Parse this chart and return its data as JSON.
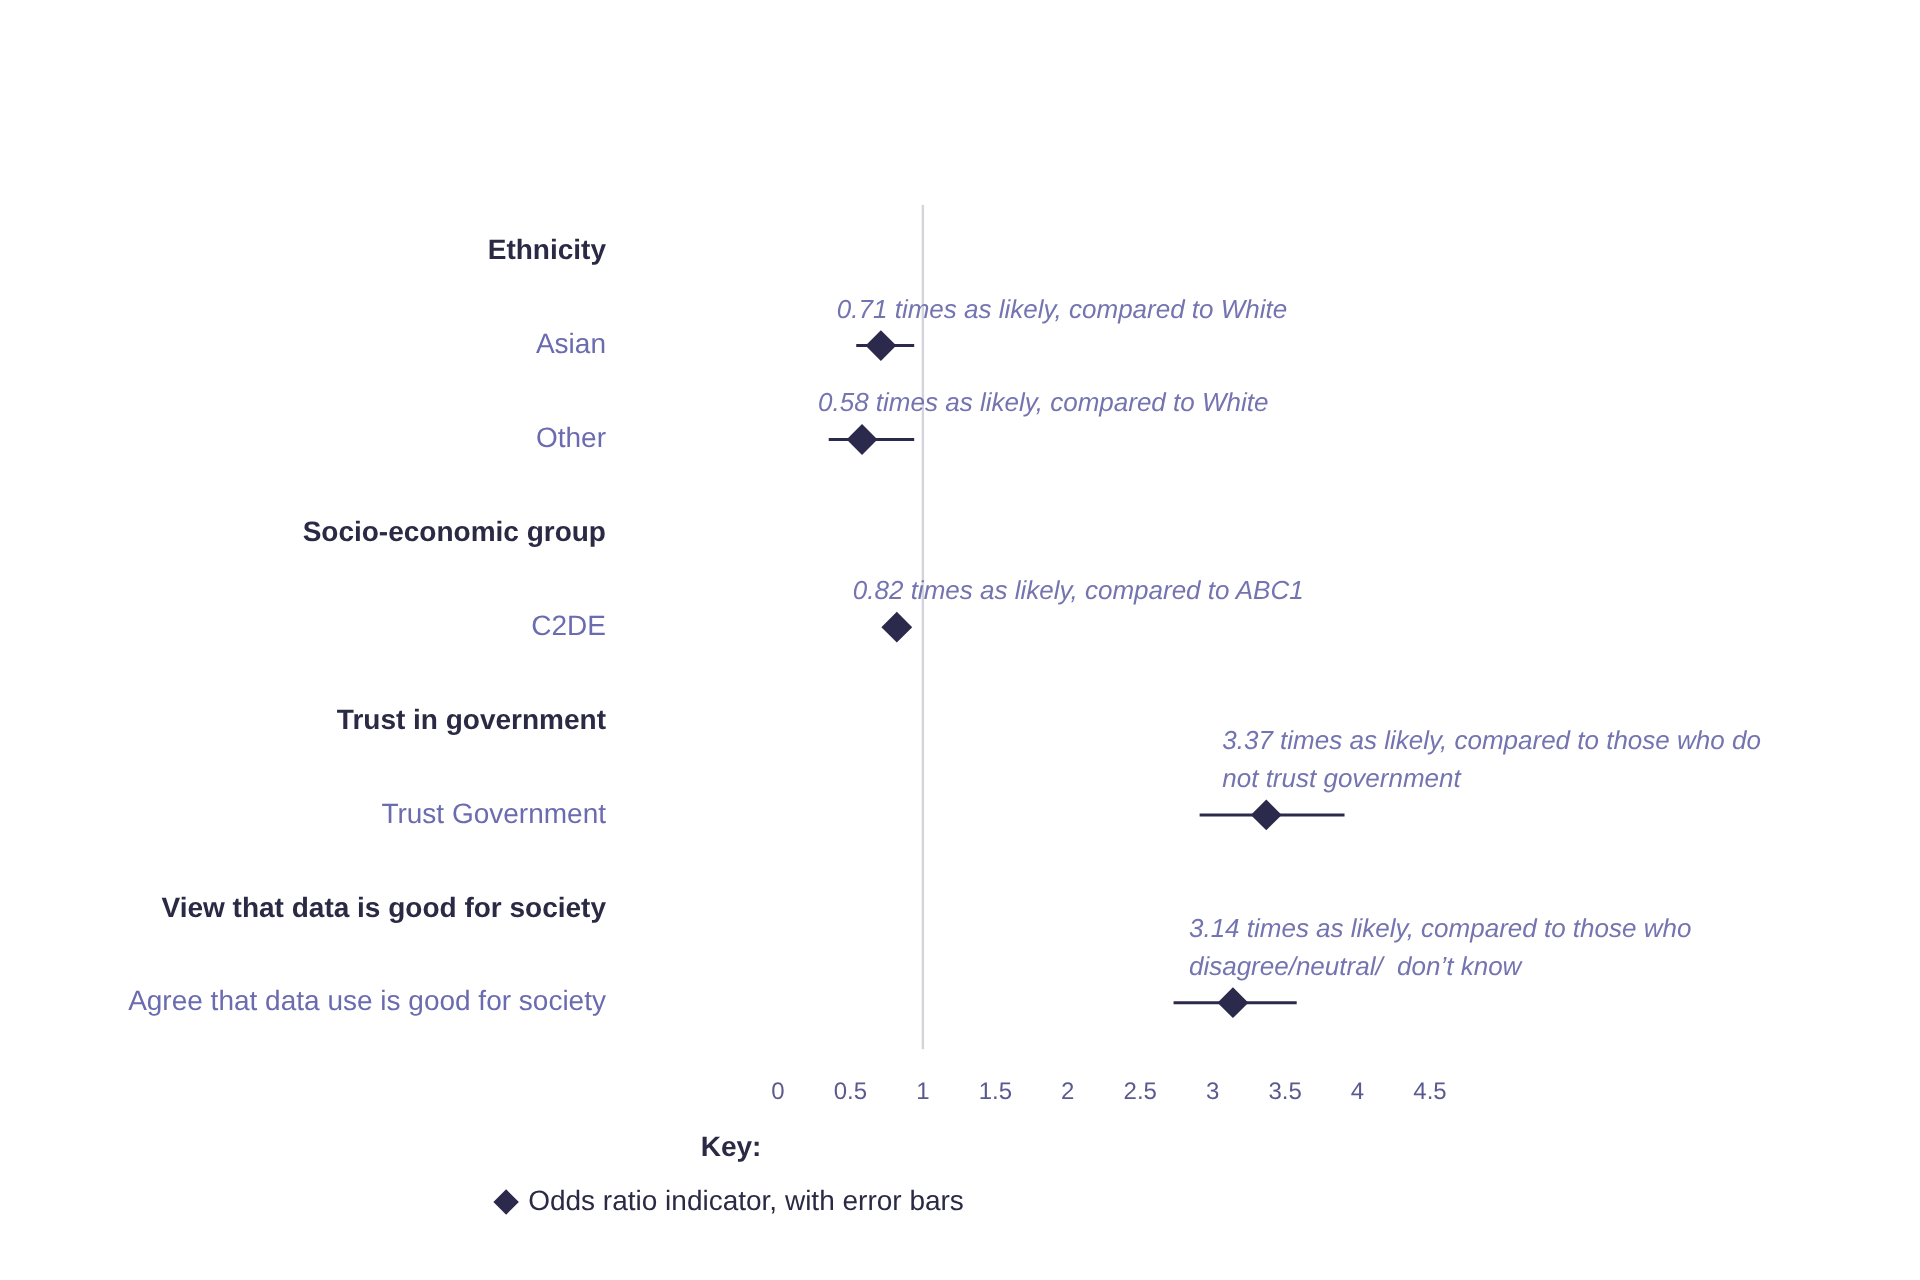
{
  "chart_data": {
    "type": "scatter",
    "orientation": "horizontal",
    "categories": [
      "Ethnicity",
      "Asian",
      "Other",
      "Socio-economic group",
      "C2DE",
      "Trust in government",
      "Trust Government",
      "View that data is good for society",
      "Agree that data use is good for society"
    ],
    "series": [
      {
        "name": "Odds ratio indicator, with error bars",
        "color": "#2b2a4c",
        "values": [
          null,
          0.71,
          0.58,
          null,
          0.82,
          null,
          3.37,
          null,
          3.14
        ],
        "errors": [
          null,
          [
            0.54,
            0.94
          ],
          [
            0.35,
            0.94
          ],
          null,
          [
            0.75,
            0.9
          ],
          null,
          [
            2.91,
            3.91
          ],
          null,
          [
            2.73,
            3.58
          ]
        ]
      }
    ],
    "xlim": [
      0,
      4.5
    ],
    "xticks": [
      0,
      0.5,
      1,
      1.5,
      2,
      2.5,
      3,
      3.5,
      4,
      4.5
    ],
    "ref_lines": [
      {
        "axis": "x",
        "value": 1,
        "color": "#d4d4dc"
      }
    ],
    "annotations": [
      {
        "text": "0.71 times as likely, compared to White",
        "x": 0.71,
        "y": "Asian"
      },
      {
        "text": "0.58 times as likely, compared to White",
        "x": 0.58,
        "y": "Other"
      },
      {
        "text": "0.82 times as likely, compared to ABC1",
        "x": 0.82,
        "y": "C2DE"
      },
      {
        "text": "3.37 times as likely, compared to those who do not trust government",
        "x": 3.37,
        "y": "Trust Government"
      },
      {
        "text": "3.14 times as likely, compared to those who disagree/neutral/  don’t know",
        "x": 3.14,
        "y": "Agree that data use is good for society"
      }
    ],
    "marker": "diamond",
    "grid": false,
    "legend": "bottom",
    "legend_title": "Key:"
  }
}
